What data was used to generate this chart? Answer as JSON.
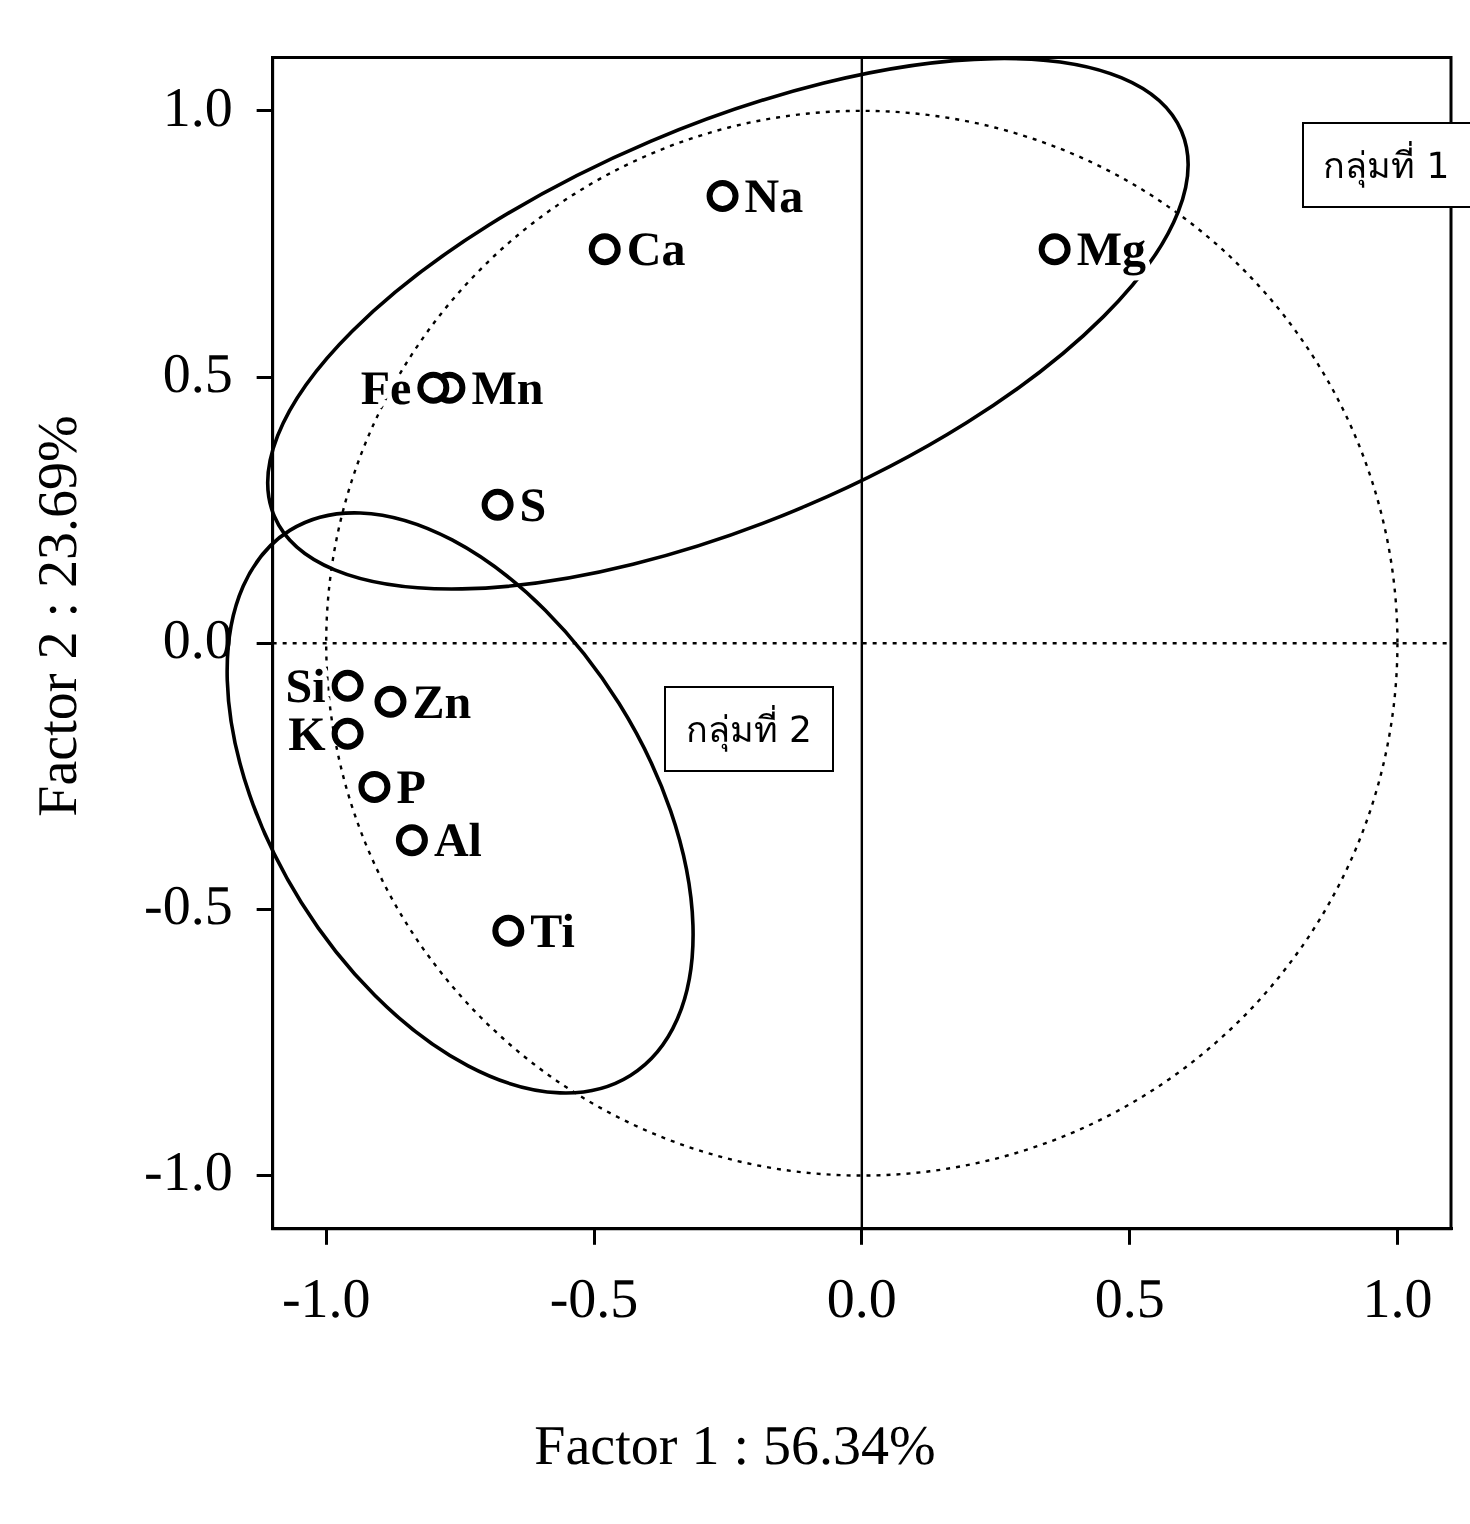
{
  "chart_data": {
    "type": "scatter",
    "xlabel": "Factor 1 : 56.34%",
    "ylabel": "Factor 2 : 23.69%",
    "xlim": [
      -1.1,
      1.1
    ],
    "ylim": [
      -1.1,
      1.1
    ],
    "xticks": [
      {
        "value": -1,
        "label": "-1.0"
      },
      {
        "value": -0.5,
        "label": "-0.5"
      },
      {
        "value": 0,
        "label": "0.0"
      },
      {
        "value": 0.5,
        "label": "0.5"
      },
      {
        "value": 1,
        "label": "1.0"
      }
    ],
    "yticks": [
      {
        "value": -1,
        "label": "-1.0"
      },
      {
        "value": -0.5,
        "label": "-0.5"
      },
      {
        "value": 0,
        "label": "0.0"
      },
      {
        "value": 0.5,
        "label": "0.5"
      },
      {
        "value": 1,
        "label": "1.0"
      }
    ],
    "grid": false,
    "legend": false,
    "marker": "circle",
    "ref_lines": [
      {
        "axis": "x",
        "value": 0,
        "line_style": "solid"
      },
      {
        "axis": "y",
        "value": 0,
        "line_style": "dotted"
      }
    ],
    "annotations": [
      "กลุ่มที่ 1",
      "กลุ่มที่ 2"
    ],
    "series": [
      {
        "name": "Na",
        "color": "#000000",
        "x": [
          -0.26
        ],
        "values": [
          0.84
        ]
      },
      {
        "name": "Ca",
        "color": "#000000",
        "x": [
          -0.48
        ],
        "values": [
          0.74
        ]
      },
      {
        "name": "Mg",
        "color": "#000000",
        "x": [
          0.36
        ],
        "values": [
          0.74
        ]
      },
      {
        "name": "Fe",
        "color": "#000000",
        "x": [
          -0.8
        ],
        "values": [
          0.48
        ]
      },
      {
        "name": "Mn",
        "color": "#000000",
        "x": [
          -0.77
        ],
        "values": [
          0.48
        ]
      },
      {
        "name": "S",
        "color": "#000000",
        "x": [
          -0.68
        ],
        "values": [
          0.26
        ]
      },
      {
        "name": "Si",
        "color": "#000000",
        "x": [
          -0.96
        ],
        "values": [
          -0.08
        ]
      },
      {
        "name": "Zn",
        "color": "#000000",
        "x": [
          -0.88
        ],
        "values": [
          -0.11
        ]
      },
      {
        "name": "K",
        "color": "#000000",
        "x": [
          -0.96
        ],
        "values": [
          -0.17
        ]
      },
      {
        "name": "P",
        "color": "#000000",
        "x": [
          -0.91
        ],
        "values": [
          -0.27
        ]
      },
      {
        "name": "Al",
        "color": "#000000",
        "x": [
          -0.84
        ],
        "values": [
          -0.37
        ]
      },
      {
        "name": "Ti",
        "color": "#000000",
        "x": [
          -0.66
        ],
        "values": [
          -0.54
        ]
      }
    ]
  }
}
